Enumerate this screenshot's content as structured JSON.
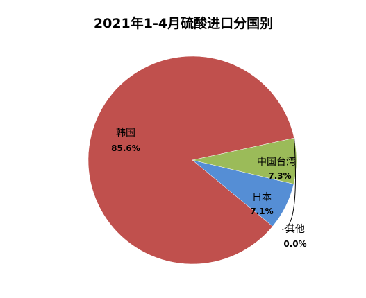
{
  "chart_data": {
    "type": "pie",
    "title": "2021年1-4月硫酸进口分国别",
    "slices": [
      {
        "label": "韩国",
        "value": 85.6,
        "value_label": "85.6%",
        "color": "#C0504D"
      },
      {
        "label": "中国台湾",
        "value": 7.3,
        "value_label": "7.3%",
        "color": "#558ED5"
      },
      {
        "label": "日本",
        "value": 7.1,
        "value_label": "7.1%",
        "color": "#9BBB59"
      },
      {
        "label": "其他",
        "value": 0.0,
        "value_label": "0.0%",
        "color": "#8064A2"
      }
    ],
    "legend": "none"
  }
}
